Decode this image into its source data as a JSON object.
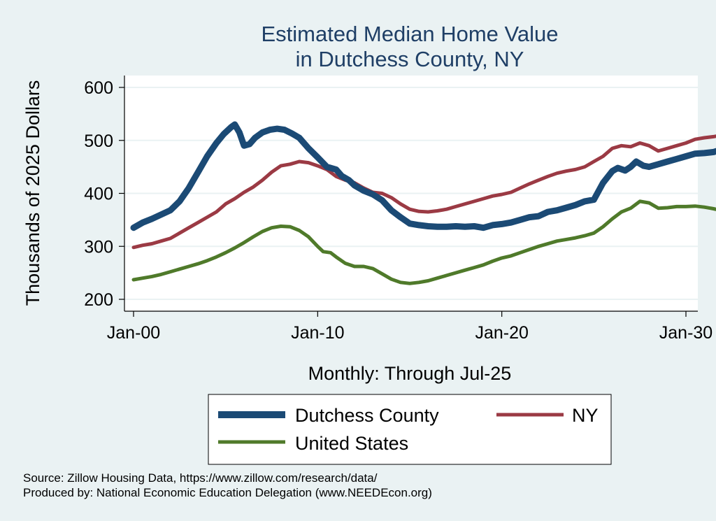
{
  "chart_data": {
    "type": "line",
    "title": [
      "Estimated Median Home Value",
      "in Dutchess County, NY"
    ],
    "xlabel": "Monthly: Through Jul-25",
    "ylabel": "Thousands of 2025 Dollars",
    "xlim": [
      2000.0,
      2030.0
    ],
    "ylim": [
      200,
      600
    ],
    "xticks": [
      {
        "value": 2000,
        "label": "Jan-00"
      },
      {
        "value": 2010,
        "label": "Jan-10"
      },
      {
        "value": 2020,
        "label": "Jan-20"
      },
      {
        "value": 2030,
        "label": "Jan-30"
      }
    ],
    "yticks": [
      200,
      300,
      400,
      500,
      600
    ],
    "grid": true,
    "legend": "bottom",
    "series": [
      {
        "name": "Dutchess County",
        "color": "#1b4a75",
        "end_label": "481.3",
        "points": [
          [
            2000.0,
            335
          ],
          [
            2000.5,
            345
          ],
          [
            2001.0,
            352
          ],
          [
            2001.5,
            360
          ],
          [
            2002.0,
            368
          ],
          [
            2002.5,
            385
          ],
          [
            2003.0,
            410
          ],
          [
            2003.5,
            440
          ],
          [
            2004.0,
            470
          ],
          [
            2004.5,
            495
          ],
          [
            2004.9,
            512
          ],
          [
            2005.3,
            525
          ],
          [
            2005.5,
            530
          ],
          [
            2005.75,
            515
          ],
          [
            2006.0,
            490
          ],
          [
            2006.3,
            493
          ],
          [
            2006.6,
            505
          ],
          [
            2007.0,
            515
          ],
          [
            2007.4,
            520
          ],
          [
            2007.8,
            522
          ],
          [
            2008.2,
            520
          ],
          [
            2008.6,
            513
          ],
          [
            2009.0,
            505
          ],
          [
            2009.5,
            485
          ],
          [
            2010.0,
            468
          ],
          [
            2010.5,
            450
          ],
          [
            2011.0,
            445
          ],
          [
            2011.3,
            433
          ],
          [
            2011.7,
            425
          ],
          [
            2012.0,
            415
          ],
          [
            2012.5,
            405
          ],
          [
            2013.0,
            398
          ],
          [
            2013.5,
            387
          ],
          [
            2014.0,
            368
          ],
          [
            2014.5,
            355
          ],
          [
            2015.0,
            343
          ],
          [
            2015.5,
            340
          ],
          [
            2016.0,
            338
          ],
          [
            2016.5,
            337
          ],
          [
            2017.0,
            337
          ],
          [
            2017.5,
            338
          ],
          [
            2018.0,
            337
          ],
          [
            2018.5,
            338
          ],
          [
            2019.0,
            335
          ],
          [
            2019.5,
            340
          ],
          [
            2020.0,
            342
          ],
          [
            2020.5,
            345
          ],
          [
            2021.0,
            350
          ],
          [
            2021.5,
            355
          ],
          [
            2022.0,
            357
          ],
          [
            2022.5,
            365
          ],
          [
            2023.0,
            368
          ],
          [
            2023.5,
            373
          ],
          [
            2024.0,
            378
          ],
          [
            2024.5,
            385
          ],
          [
            2025.0,
            388
          ],
          [
            2025.5,
            420
          ],
          [
            2026.0,
            442
          ],
          [
            2026.3,
            448
          ],
          [
            2026.7,
            443
          ],
          [
            2027.0,
            450
          ],
          [
            2027.3,
            460
          ],
          [
            2027.7,
            452
          ],
          [
            2028.0,
            450
          ],
          [
            2028.5,
            455
          ],
          [
            2029.0,
            460
          ],
          [
            2029.5,
            465
          ],
          [
            2030.0,
            470
          ],
          [
            2030.5,
            475
          ],
          [
            2031.0,
            476
          ],
          [
            2031.5,
            478
          ],
          [
            2031.8,
            481.3
          ]
        ]
      },
      {
        "name": "NY",
        "color": "#9b3a44",
        "end_label": "509.1",
        "points": [
          [
            2000.0,
            298
          ],
          [
            2000.5,
            302
          ],
          [
            2001.0,
            305
          ],
          [
            2001.5,
            310
          ],
          [
            2002.0,
            315
          ],
          [
            2002.5,
            325
          ],
          [
            2003.0,
            335
          ],
          [
            2003.5,
            345
          ],
          [
            2004.0,
            355
          ],
          [
            2004.5,
            365
          ],
          [
            2005.0,
            380
          ],
          [
            2005.5,
            390
          ],
          [
            2006.0,
            402
          ],
          [
            2006.5,
            412
          ],
          [
            2007.0,
            425
          ],
          [
            2007.5,
            440
          ],
          [
            2008.0,
            452
          ],
          [
            2008.5,
            455
          ],
          [
            2009.0,
            460
          ],
          [
            2009.5,
            458
          ],
          [
            2010.0,
            452
          ],
          [
            2010.5,
            445
          ],
          [
            2011.0,
            432
          ],
          [
            2011.5,
            425
          ],
          [
            2012.0,
            420
          ],
          [
            2012.5,
            410
          ],
          [
            2013.0,
            402
          ],
          [
            2013.5,
            400
          ],
          [
            2014.0,
            392
          ],
          [
            2014.5,
            380
          ],
          [
            2015.0,
            370
          ],
          [
            2015.5,
            366
          ],
          [
            2016.0,
            365
          ],
          [
            2016.5,
            367
          ],
          [
            2017.0,
            370
          ],
          [
            2017.5,
            375
          ],
          [
            2018.0,
            380
          ],
          [
            2018.5,
            385
          ],
          [
            2019.0,
            390
          ],
          [
            2019.5,
            395
          ],
          [
            2020.0,
            398
          ],
          [
            2020.5,
            402
          ],
          [
            2021.0,
            410
          ],
          [
            2021.5,
            418
          ],
          [
            2022.0,
            425
          ],
          [
            2022.5,
            432
          ],
          [
            2023.0,
            438
          ],
          [
            2023.5,
            442
          ],
          [
            2024.0,
            445
          ],
          [
            2024.5,
            450
          ],
          [
            2025.0,
            460
          ],
          [
            2025.5,
            470
          ],
          [
            2026.0,
            485
          ],
          [
            2026.5,
            490
          ],
          [
            2027.0,
            488
          ],
          [
            2027.5,
            495
          ],
          [
            2028.0,
            490
          ],
          [
            2028.5,
            480
          ],
          [
            2029.0,
            485
          ],
          [
            2029.5,
            490
          ],
          [
            2030.0,
            495
          ],
          [
            2030.5,
            502
          ],
          [
            2031.0,
            505
          ],
          [
            2031.5,
            507
          ],
          [
            2031.8,
            509.1
          ]
        ]
      },
      {
        "name": "United States",
        "color": "#4f7a2a",
        "end_label": "368.6",
        "points": [
          [
            2000.0,
            237
          ],
          [
            2000.5,
            240
          ],
          [
            2001.0,
            243
          ],
          [
            2001.5,
            247
          ],
          [
            2002.0,
            252
          ],
          [
            2002.5,
            257
          ],
          [
            2003.0,
            262
          ],
          [
            2003.5,
            267
          ],
          [
            2004.0,
            273
          ],
          [
            2004.5,
            280
          ],
          [
            2005.0,
            288
          ],
          [
            2005.5,
            297
          ],
          [
            2006.0,
            307
          ],
          [
            2006.5,
            318
          ],
          [
            2007.0,
            328
          ],
          [
            2007.5,
            335
          ],
          [
            2008.0,
            338
          ],
          [
            2008.5,
            337
          ],
          [
            2009.0,
            330
          ],
          [
            2009.5,
            318
          ],
          [
            2010.0,
            300
          ],
          [
            2010.3,
            290
          ],
          [
            2010.7,
            288
          ],
          [
            2011.0,
            280
          ],
          [
            2011.5,
            268
          ],
          [
            2012.0,
            262
          ],
          [
            2012.5,
            262
          ],
          [
            2013.0,
            258
          ],
          [
            2013.5,
            248
          ],
          [
            2014.0,
            238
          ],
          [
            2014.5,
            232
          ],
          [
            2015.0,
            230
          ],
          [
            2015.5,
            232
          ],
          [
            2016.0,
            235
          ],
          [
            2016.5,
            240
          ],
          [
            2017.0,
            245
          ],
          [
            2017.5,
            250
          ],
          [
            2018.0,
            255
          ],
          [
            2018.5,
            260
          ],
          [
            2019.0,
            265
          ],
          [
            2019.5,
            272
          ],
          [
            2020.0,
            278
          ],
          [
            2020.5,
            282
          ],
          [
            2021.0,
            288
          ],
          [
            2021.5,
            294
          ],
          [
            2022.0,
            300
          ],
          [
            2022.5,
            305
          ],
          [
            2023.0,
            310
          ],
          [
            2023.5,
            313
          ],
          [
            2024.0,
            316
          ],
          [
            2024.5,
            320
          ],
          [
            2025.0,
            325
          ],
          [
            2025.5,
            337
          ],
          [
            2026.0,
            352
          ],
          [
            2026.5,
            365
          ],
          [
            2027.0,
            372
          ],
          [
            2027.5,
            385
          ],
          [
            2028.0,
            382
          ],
          [
            2028.5,
            372
          ],
          [
            2029.0,
            373
          ],
          [
            2029.5,
            375
          ],
          [
            2030.0,
            375
          ],
          [
            2030.5,
            376
          ],
          [
            2031.0,
            374
          ],
          [
            2031.5,
            371
          ],
          [
            2031.8,
            368.6
          ]
        ]
      }
    ],
    "legend_items": [
      {
        "name": "Dutchess County",
        "color": "#1b4a75",
        "thick": true
      },
      {
        "name": "NY",
        "color": "#9b3a44",
        "thick": false
      },
      {
        "name": "United States",
        "color": "#4f7a2a",
        "thick": false
      }
    ]
  },
  "source": {
    "line1": "Source: Zillow Housing Data, https://www.zillow.com/research/data/",
    "line2": "Produced by: National Economic Education Delegation (www.NEEDEcon.org)"
  }
}
